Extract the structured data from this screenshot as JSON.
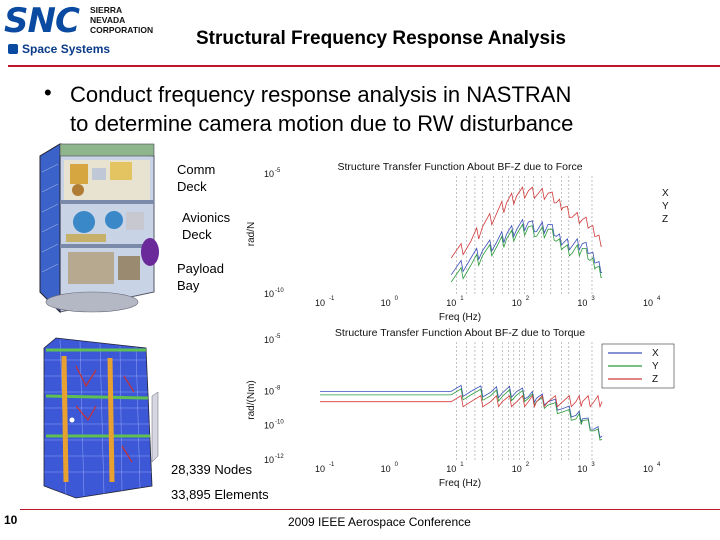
{
  "header": {
    "logo": {
      "mark": "SNC",
      "line1": "SIERRA",
      "line2": "NEVADA",
      "line3": "CORPORATION",
      "division": "Space Systems"
    },
    "title": "Structural Frequency Response Analysis"
  },
  "bullet": {
    "line1": "Conduct frequency response analysis in NASTRAN",
    "line2": "to determine camera motion due to RW disturbance"
  },
  "labels": {
    "comm_deck": [
      "Comm",
      "Deck"
    ],
    "avionics_deck": [
      "Avionics",
      "Deck"
    ],
    "payload_bay": [
      "Payload",
      "Bay"
    ],
    "nodes": "28,339 Nodes",
    "elements": "33,895 Elements"
  },
  "footer": {
    "page_number": "10",
    "conference": "2009 IEEE Aerospace Conference"
  },
  "colors": {
    "rule": "#c0142a",
    "logo_blue": "#0a4aa0",
    "x_series": "#3a4fb8",
    "y_series": "#2a9a3a",
    "z_series": "#d23a3a"
  },
  "chart_data": [
    {
      "type": "line",
      "title": "Structure Transfer Function About BF-Z due to Force",
      "xlabel": "Freq (Hz)",
      "ylabel": "rad/N",
      "x_scale": "log",
      "y_scale": "log",
      "x_tick_labels": [
        "10",
        "10",
        "10",
        "10",
        "10",
        "10"
      ],
      "x_tick_exponents": [
        "-1",
        "0",
        "1",
        "2",
        "3",
        "4"
      ],
      "y_tick_labels": [
        "10",
        "10"
      ],
      "y_tick_exponents": [
        "-5",
        "-10"
      ],
      "legend": [
        "X",
        "Y",
        "Z"
      ],
      "legend_position": "right-outside",
      "series": [
        {
          "name": "X",
          "color": "#3a4fb8",
          "x": [
            10,
            20,
            30,
            50,
            70,
            100,
            150,
            200,
            300,
            400,
            500,
            700,
            1000,
            1300,
            1600,
            2000
          ],
          "logy": [
            -9.2,
            -8.5,
            -8.2,
            -7.8,
            -7.5,
            -7.3,
            -7.0,
            -7.4,
            -7.1,
            -7.6,
            -7.9,
            -8.0,
            -7.9,
            -8.3,
            -8.7,
            -9.1
          ]
        },
        {
          "name": "Y",
          "color": "#2a9a3a",
          "x": [
            10,
            20,
            30,
            50,
            70,
            100,
            150,
            200,
            300,
            400,
            500,
            700,
            1000,
            1300,
            1600,
            2000
          ],
          "logy": [
            -9.5,
            -8.8,
            -8.4,
            -8.0,
            -7.7,
            -7.5,
            -7.2,
            -7.6,
            -7.3,
            -7.8,
            -8.1,
            -8.3,
            -8.1,
            -8.6,
            -8.9,
            -9.3
          ]
        },
        {
          "name": "Z",
          "color": "#d23a3a",
          "x": [
            10,
            20,
            30,
            50,
            70,
            100,
            150,
            200,
            300,
            400,
            500,
            700,
            1000,
            1300,
            1600,
            2000
          ],
          "logy": [
            -8.5,
            -7.8,
            -7.2,
            -6.6,
            -6.2,
            -5.9,
            -5.7,
            -5.9,
            -5.8,
            -6.2,
            -6.4,
            -6.8,
            -6.9,
            -7.2,
            -7.6,
            -8.0
          ]
        }
      ],
      "vertical_lines_hz": [
        12,
        17,
        23,
        30,
        44,
        60,
        75,
        90,
        110,
        130,
        180,
        240,
        330,
        480,
        620,
        900,
        1400
      ]
    },
    {
      "type": "line",
      "title": "Structure Transfer Function About BF-Z due to Torque",
      "xlabel": "Freq (Hz)",
      "ylabel": "rad/(Nm)",
      "x_scale": "log",
      "y_scale": "log",
      "x_tick_labels": [
        "10",
        "10",
        "10",
        "10",
        "10",
        "10"
      ],
      "x_tick_exponents": [
        "-1",
        "0",
        "1",
        "2",
        "3",
        "4"
      ],
      "y_tick_labels": [
        "10",
        "10",
        "10",
        "10"
      ],
      "y_tick_exponents": [
        "-5",
        "-8",
        "-10",
        "-12"
      ],
      "legend": [
        "X",
        "Y",
        "Z"
      ],
      "legend_position": "top-right",
      "series": [
        {
          "name": "X",
          "color": "#3a4fb8",
          "x": [
            0.1,
            1,
            10,
            20,
            40,
            60,
            100,
            150,
            200,
            300,
            500,
            800,
            1000,
            1500,
            2000
          ],
          "logy": [
            -8.0,
            -8.0,
            -8.0,
            -8.0,
            -8.05,
            -8.1,
            -8.0,
            -8.3,
            -8.4,
            -8.6,
            -9.0,
            -9.4,
            -9.6,
            -10.2,
            -10.6
          ]
        },
        {
          "name": "Y",
          "color": "#2a9a3a",
          "x": [
            0.1,
            1,
            10,
            20,
            40,
            60,
            100,
            150,
            200,
            300,
            500,
            800,
            1000,
            1500,
            2000
          ],
          "logy": [
            -8.2,
            -8.2,
            -8.2,
            -8.2,
            -8.25,
            -8.3,
            -8.2,
            -8.4,
            -8.6,
            -8.8,
            -9.2,
            -9.6,
            -9.7,
            -10.3,
            -10.8
          ]
        },
        {
          "name": "Z",
          "color": "#d23a3a",
          "x": [
            0.1,
            1,
            10,
            20,
            40,
            60,
            100,
            150,
            200,
            300,
            500,
            800,
            1000,
            1500,
            2000
          ],
          "logy": [
            -8.6,
            -8.6,
            -8.6,
            -8.6,
            -8.6,
            -8.6,
            -8.6,
            -8.6,
            -8.6,
            -8.6,
            -8.6,
            -8.6,
            -8.6,
            -8.6,
            -8.6
          ]
        }
      ],
      "vertical_lines_hz": [
        12,
        17,
        23,
        30,
        44,
        60,
        75,
        90,
        110,
        130,
        180,
        240,
        330,
        480,
        620,
        900,
        1400
      ]
    }
  ]
}
